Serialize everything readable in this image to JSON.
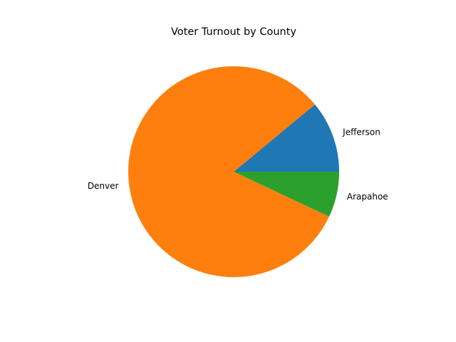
{
  "chart_data": {
    "type": "pie",
    "title": "Voter Turnout by County",
    "categories": [
      "Jefferson",
      "Denver",
      "Arapahoe"
    ],
    "values": [
      11,
      82,
      7
    ],
    "colors": [
      "#1f77b4",
      "#ff7f0e",
      "#2ca02c"
    ],
    "start_angle_deg": 0,
    "direction": "counterclockwise",
    "legend": "none"
  }
}
